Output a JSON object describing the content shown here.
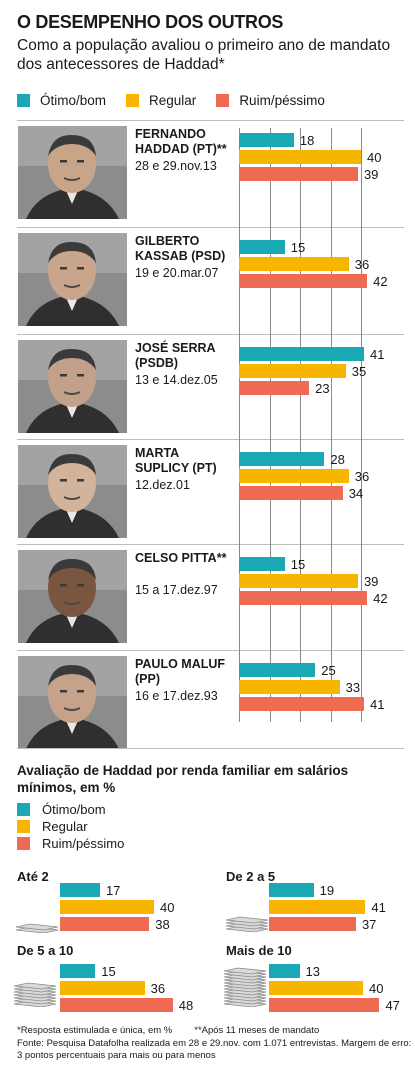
{
  "header": {
    "title": "O DESEMPENHO DOS OUTROS",
    "subtitle": "Como a população avaliou o primeiro ano de mandato dos antecessores de Haddad*"
  },
  "legend": [
    "Ótimo/bom",
    "Regular",
    "Ruim/péssimo"
  ],
  "colors": {
    "otimo": "#1aa8b4",
    "regular": "#f7b500",
    "ruim": "#ee6a52",
    "rule": "#bdbdbd",
    "grid": "#8a8a8a"
  },
  "chart_data": [
    {
      "type": "bar",
      "orientation": "horizontal",
      "series_names": [
        "Ótimo/bom",
        "Regular",
        "Ruim/péssimo"
      ],
      "categories": [
        "FERNANDO HADDAD (PT)**",
        "GILBERTO KASSAB (PSD)",
        "JOSÉ SERRA (PSDB)",
        "MARTA SUPLICY (PT)",
        "CELSO PITTA**",
        "PAULO MALUF (PP)"
      ],
      "xlim": [
        0,
        45
      ],
      "gridlines": [
        0,
        10,
        20,
        30,
        40
      ],
      "mayors": [
        {
          "name": "FERNANDO HADDAD (PT)**",
          "date": "28 e 29.nov.13",
          "photo": "haddad-photo",
          "values": [
            18,
            40,
            39
          ]
        },
        {
          "name": "GILBERTO KASSAB (PSD)",
          "date": "19 e 20.mar.07",
          "photo": "kassab-photo",
          "values": [
            15,
            36,
            42
          ]
        },
        {
          "name": "JOSÉ SERRA (PSDB)",
          "date": "13 e 14.dez.05",
          "photo": "serra-photo",
          "values": [
            41,
            35,
            23
          ]
        },
        {
          "name": "MARTA SUPLICY (PT)",
          "date": "12.dez.01",
          "photo": "marta-photo",
          "values": [
            28,
            36,
            34
          ]
        },
        {
          "name": "CELSO PITTA**",
          "date": "15 a 17.dez.97",
          "photo": "pitta-photo",
          "values": [
            15,
            39,
            42
          ]
        },
        {
          "name": "PAULO MALUF (PP)",
          "date": "16 e 17.dez.93",
          "photo": "maluf-photo",
          "values": [
            25,
            33,
            41
          ]
        }
      ]
    },
    {
      "type": "bar",
      "orientation": "horizontal",
      "title": "Avaliação de Haddad por renda familiar em salários mínimos, em %",
      "series_names": [
        "Ótimo/bom",
        "Regular",
        "Ruim/péssimo"
      ],
      "xlim": [
        0,
        50
      ],
      "groups": [
        {
          "label": "Até 2",
          "icon": "coin-stack-icon",
          "values": [
            17,
            40,
            38
          ]
        },
        {
          "label": "De 2 a 5",
          "icon": "coin-stack-icon",
          "values": [
            19,
            41,
            37
          ]
        },
        {
          "label": "De 5 a 10",
          "icon": "coin-stack-icon",
          "values": [
            15,
            36,
            48
          ]
        },
        {
          "label": "Mais de 10",
          "icon": "coin-stack-icon",
          "values": [
            13,
            40,
            47
          ]
        }
      ]
    }
  ],
  "notes": [
    "*Resposta estimulada e única, em %",
    "**Após 11 meses de mandato"
  ],
  "source": "Fonte: Pesquisa Datafolha realizada em 28 e 29.nov. com 1.071 entrevistas. Margem de erro: 3 pontos percentuais para mais ou para menos"
}
